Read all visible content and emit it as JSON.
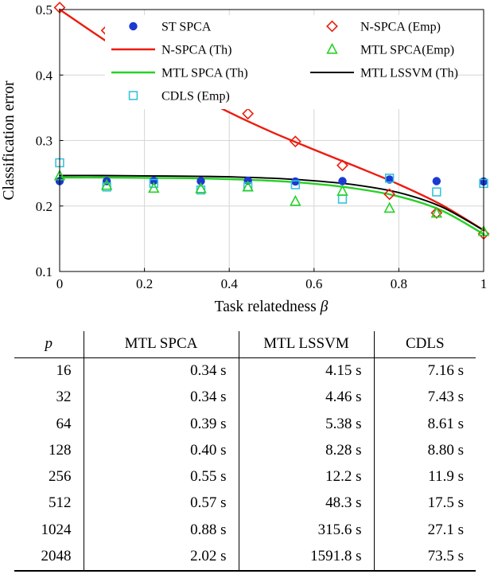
{
  "chart_data": {
    "type": "line+scatter",
    "title": "",
    "xlabel_text": "Task relatedness ",
    "xlabel_symbol": "β",
    "ylabel": "Classification error",
    "xlim": [
      0,
      1
    ],
    "ylim": [
      0.1,
      0.5
    ],
    "xticks": [
      0,
      0.2,
      0.4,
      0.6,
      0.8,
      1
    ],
    "xtick_labels": [
      "0",
      "0.2",
      "0.4",
      "0.6",
      "0.8",
      "1"
    ],
    "yticks": [
      0.1,
      0.2,
      0.3,
      0.4,
      0.5
    ],
    "ytick_labels": [
      "0.1",
      "0.2",
      "0.3",
      "0.4",
      "0.5"
    ],
    "grid": true,
    "legend_position": "top-center-inside",
    "colors": {
      "blue": "#1c39d1",
      "red": "#ec1c0e",
      "green": "#25d125",
      "cyan": "#36c3da",
      "black": "#000000",
      "grid": "#d6d6d6"
    },
    "series": [
      {
        "name": "ST SPCA",
        "kind": "scatter",
        "marker": "circle-filled",
        "color": "#1c39d1",
        "x": [
          0,
          0.111,
          0.222,
          0.333,
          0.444,
          0.556,
          0.667,
          0.778,
          0.889,
          1
        ],
        "y": [
          0.238,
          0.238,
          0.2385,
          0.238,
          0.2385,
          0.2375,
          0.238,
          0.2405,
          0.238,
          0.2375
        ]
      },
      {
        "name": "N-SPCA (Th)",
        "kind": "line",
        "color": "#ec1c0e",
        "width": 2.4,
        "x": [
          0,
          0.1,
          0.2,
          0.3,
          0.4,
          0.5,
          0.6,
          0.7,
          0.8,
          0.9,
          1
        ],
        "y": [
          0.5,
          0.456,
          0.415,
          0.377,
          0.343,
          0.313,
          0.286,
          0.26,
          0.233,
          0.202,
          0.163
        ]
      },
      {
        "name": "MTL SPCA (Th)",
        "kind": "line",
        "color": "#25d125",
        "width": 2.4,
        "x": [
          0,
          0.1,
          0.2,
          0.3,
          0.4,
          0.5,
          0.6,
          0.7,
          0.8,
          0.9,
          1
        ],
        "y": [
          0.2435,
          0.2435,
          0.243,
          0.2425,
          0.241,
          0.2385,
          0.234,
          0.2265,
          0.2145,
          0.1935,
          0.157
        ]
      },
      {
        "name": "CDLS (Emp)",
        "kind": "scatter",
        "marker": "square-open",
        "color": "#36c3da",
        "x": [
          0,
          0.111,
          0.222,
          0.333,
          0.444,
          0.556,
          0.667,
          0.778,
          0.889,
          1
        ],
        "y": [
          0.266,
          0.229,
          0.2345,
          0.2245,
          0.2295,
          0.2325,
          0.2105,
          0.2425,
          0.2215,
          0.2345
        ]
      },
      {
        "name": "N-SPCA (Emp)",
        "kind": "scatter",
        "marker": "diamond-open",
        "color": "#ec1c0e",
        "x": [
          0,
          0.111,
          0.222,
          0.333,
          0.444,
          0.556,
          0.667,
          0.778,
          0.889,
          1
        ],
        "y": [
          0.503,
          0.468,
          0.428,
          0.387,
          0.341,
          0.2985,
          0.262,
          0.218,
          0.1895,
          0.1575
        ]
      },
      {
        "name": "MTL SPCA(Emp)",
        "kind": "scatter",
        "marker": "triangle-open",
        "color": "#25d125",
        "x": [
          0,
          0.111,
          0.222,
          0.333,
          0.444,
          0.556,
          0.667,
          0.778,
          0.889,
          1
        ],
        "y": [
          0.246,
          0.2315,
          0.227,
          0.2265,
          0.229,
          0.207,
          0.2225,
          0.1965,
          0.189,
          0.161
        ]
      },
      {
        "name": "MTL LSSVM (Th)",
        "kind": "line",
        "color": "#000000",
        "width": 1.9,
        "x": [
          0,
          0.1,
          0.2,
          0.3,
          0.4,
          0.5,
          0.6,
          0.7,
          0.8,
          0.9,
          1
        ],
        "y": [
          0.2465,
          0.2465,
          0.246,
          0.2455,
          0.2445,
          0.2425,
          0.2385,
          0.232,
          0.2205,
          0.199,
          0.163
        ]
      }
    ],
    "legend": {
      "columns": [
        [
          0,
          1,
          2,
          3
        ],
        [
          4,
          5,
          6
        ]
      ]
    }
  },
  "table": {
    "col_headers": [
      "p",
      "MTL SPCA",
      "MTL LSSVM",
      "CDLS"
    ],
    "rows": [
      [
        "16",
        "0.34 s",
        "4.15 s",
        "7.16 s"
      ],
      [
        "32",
        "0.34 s",
        "4.46 s",
        "7.43 s"
      ],
      [
        "64",
        "0.39 s",
        "5.38 s",
        "8.61 s"
      ],
      [
        "128",
        "0.40 s",
        "8.28 s",
        "8.80 s"
      ],
      [
        "256",
        "0.55 s",
        "12.2 s",
        "11.9 s"
      ],
      [
        "512",
        "0.57 s",
        "48.3 s",
        "17.5 s"
      ],
      [
        "1024",
        "0.88 s",
        "315.6 s",
        "27.1 s"
      ],
      [
        "2048",
        "2.02 s",
        "1591.8 s",
        "73.5 s"
      ]
    ]
  }
}
